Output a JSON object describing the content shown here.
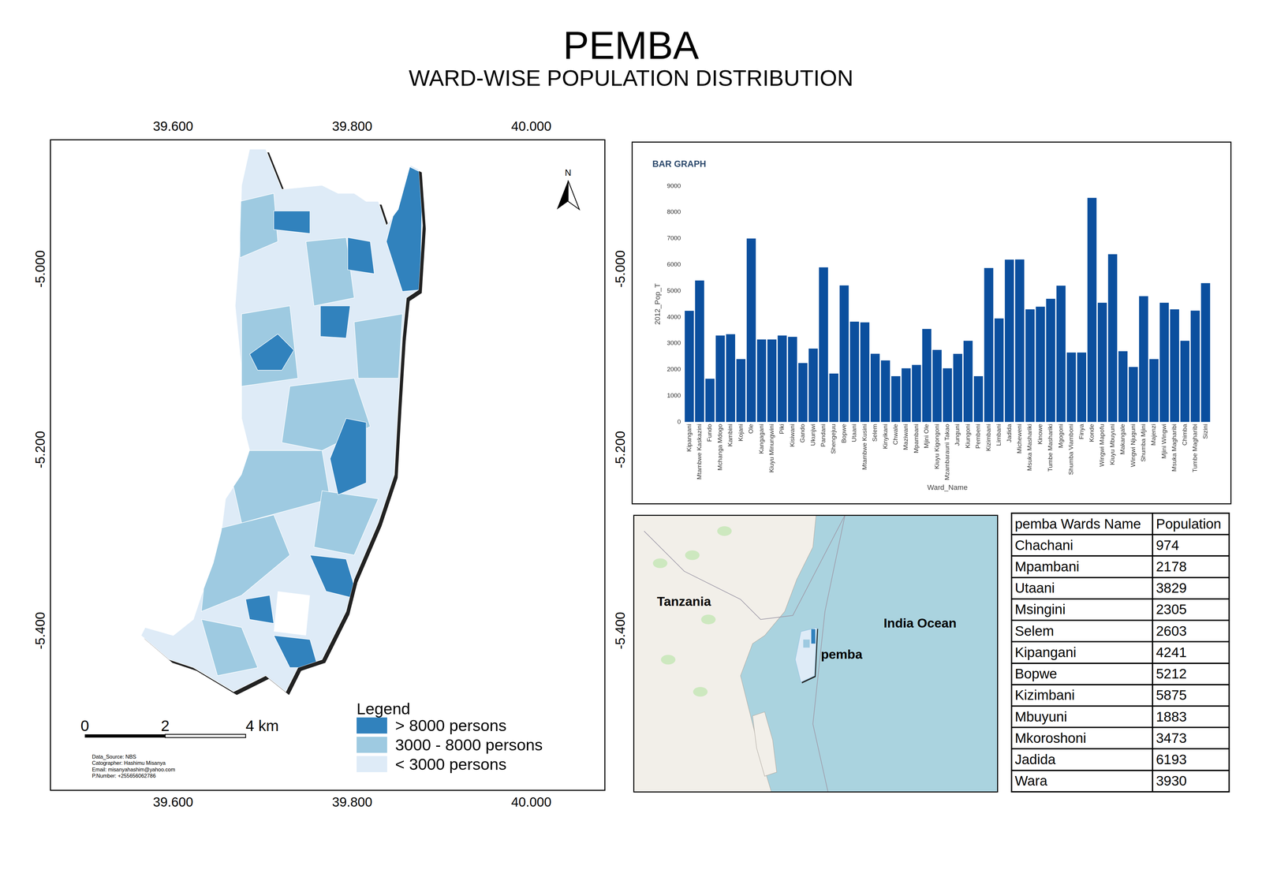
{
  "header": {
    "title": "PEMBA",
    "subtitle": "WARD-WISE POPULATION DISTRIBUTION"
  },
  "map": {
    "xlim": [
      39.4625,
      40.0827
    ],
    "ylim": [
      -5.576,
      -4.856
    ],
    "xticks": [
      {
        "value": 39.6,
        "label": "39.600"
      },
      {
        "value": 39.8,
        "label": "39.800"
      },
      {
        "value": 40.0,
        "label": "40.000"
      }
    ],
    "yticks": [
      {
        "value": -5.0,
        "label": "-5.000"
      },
      {
        "value": -5.2,
        "label": "-5.200"
      },
      {
        "value": -5.4,
        "label": "-5.400"
      }
    ],
    "north": "N",
    "map_legend": {
      "title": "Legend",
      "items": [
        {
          "label": "> 8000  persons",
          "color": "#3182bd"
        },
        {
          "label": "3000 - 8000 persons",
          "color": "#9ecae1"
        },
        {
          "label": "< 3000 persons",
          "color": "#deebf7"
        }
      ]
    },
    "scale_bar": {
      "labels": [
        "0",
        "2",
        "4 km"
      ]
    },
    "credits": [
      "Data_Source: NBS",
      "Catographer: Hashimu Misanya",
      "Email: misanyahashim@yahoo.com",
      "P.Number: +255656062786"
    ]
  },
  "chart_data": {
    "type": "bar",
    "title": "BAR GRAPH",
    "x_label": "Ward_Name",
    "y_label": "2012_Pop_T",
    "categories": [
      "Kipangani",
      "Mtambwe Kaskazini",
      "Fundo",
      "Mchanga Mdogo",
      "Kambini",
      "Kojani",
      "Ole",
      "Kangagani",
      "Kiuyu Minungwini",
      "Piki",
      "Kisiwani",
      "Gando",
      "Ukunjwi",
      "Pandani",
      "Shengejuu",
      "Bopwe",
      "Utaani",
      "Mtambwe Kusini",
      "Selem",
      "Kinyikani",
      "Chwale",
      "Maziwani",
      "Mpambani",
      "Mjini Ole",
      "Kiuyu Kigongoni",
      "Mzambarauni Takao",
      "Junguni",
      "Kiungoni",
      "Pembeni",
      "Kizimbani",
      "Limbani",
      "Jadida",
      "Micheweni",
      "Msuka Mashariki",
      "Kinowe",
      "Tumbe Mashariki",
      "Mgogoni",
      "Shumba Viamboni",
      "Finya",
      "Konde",
      "Wingwi Mapofu",
      "Kiuyu Mbuyuni",
      "Makangale",
      "Wingwi Njuguni",
      "Shumba Mjini",
      "Majenzi",
      "Mjini Wingwi",
      "Msuka Magharibi",
      "Chimba",
      "Tumbe Magharibi",
      "Sizini"
    ],
    "values": [
      4241,
      5400,
      1650,
      3300,
      3350,
      2400,
      7000,
      3150,
      3150,
      3300,
      3250,
      2250,
      2800,
      5900,
      1850,
      5212,
      3829,
      3800,
      2603,
      2350,
      1750,
      2050,
      2178,
      3550,
      2750,
      2050,
      2600,
      3100,
      1750,
      5875,
      3950,
      6193,
      6200,
      4300,
      4400,
      4700,
      5200,
      2650,
      2650,
      8550,
      4550,
      6400,
      2700,
      2100,
      4800,
      2400,
      4550,
      4300,
      3100,
      4250,
      5300
    ],
    "color": "#0b4f9e",
    "ylim": [
      0,
      9000
    ],
    "yticks": [
      0,
      1000,
      2000,
      3000,
      4000,
      5000,
      6000,
      7000,
      8000,
      9000
    ],
    "grid": false
  },
  "inset": {
    "labels": {
      "country": "Tanzania",
      "ocean": "India Ocean",
      "island": "pemba"
    }
  },
  "table": {
    "header": [
      "pemba Wards Name",
      "Population"
    ],
    "rows": [
      [
        "Chachani",
        974
      ],
      [
        "Mpambani",
        2178
      ],
      [
        "Utaani",
        3829
      ],
      [
        "Msingini",
        2305
      ],
      [
        "Selem",
        2603
      ],
      [
        "Kipangani",
        4241
      ],
      [
        "Bopwe",
        5212
      ],
      [
        "Kizimbani",
        5875
      ],
      [
        "Mbuyuni",
        1883
      ],
      [
        "Mkoroshoni",
        3473
      ],
      [
        "Jadida",
        6193
      ],
      [
        "Wara",
        3930
      ]
    ]
  }
}
